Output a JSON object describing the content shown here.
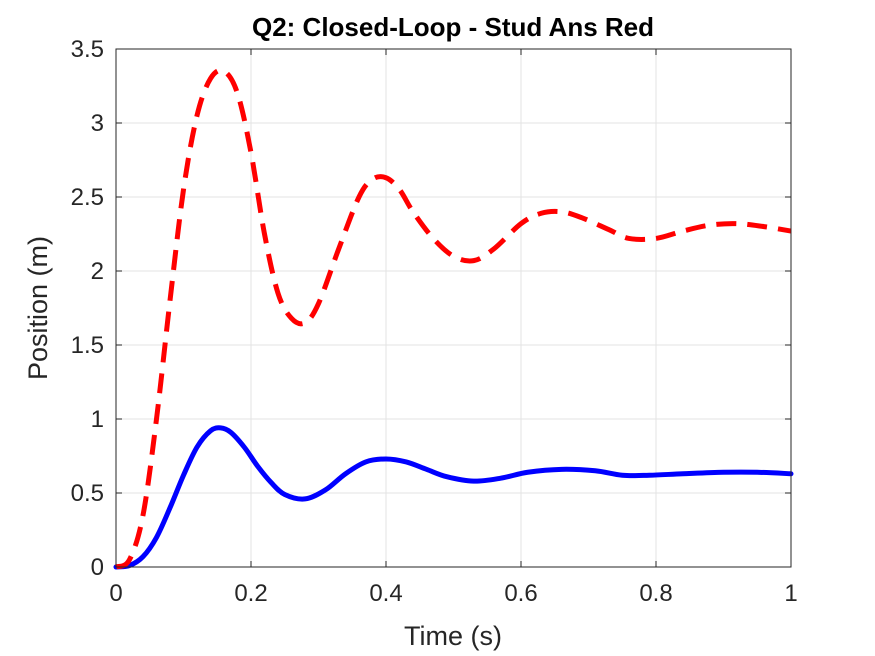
{
  "chart_data": {
    "type": "line",
    "title": "Q2: Closed-Loop - Stud Ans Red",
    "xlabel": "Time (s)",
    "ylabel": "Position (m)",
    "xlim": [
      0,
      1
    ],
    "ylim": [
      0,
      3.5
    ],
    "xticks": [
      0,
      0.2,
      0.4,
      0.6,
      0.8,
      1
    ],
    "xtick_labels": [
      "0",
      "0.2",
      "0.4",
      "0.6",
      "0.8",
      "1"
    ],
    "yticks": [
      0,
      0.5,
      1,
      1.5,
      2,
      2.5,
      3,
      3.5
    ],
    "ytick_labels": [
      "0",
      "0.5",
      "1",
      "1.5",
      "2",
      "2.5",
      "3",
      "3.5"
    ],
    "grid": true,
    "legend": "none",
    "series": [
      {
        "color": "#0000ff",
        "linestyle": "solid",
        "x": [
          0,
          0.02,
          0.04,
          0.06,
          0.08,
          0.1,
          0.12,
          0.14,
          0.155,
          0.17,
          0.19,
          0.21,
          0.23,
          0.25,
          0.28,
          0.31,
          0.34,
          0.37,
          0.4,
          0.43,
          0.46,
          0.49,
          0.53,
          0.57,
          0.61,
          0.66,
          0.71,
          0.75,
          0.79,
          0.84,
          0.9,
          0.95,
          1.0
        ],
        "y": [
          0,
          0.01,
          0.07,
          0.2,
          0.4,
          0.62,
          0.81,
          0.92,
          0.94,
          0.91,
          0.81,
          0.68,
          0.57,
          0.49,
          0.46,
          0.52,
          0.63,
          0.71,
          0.73,
          0.71,
          0.66,
          0.61,
          0.58,
          0.6,
          0.64,
          0.66,
          0.65,
          0.62,
          0.62,
          0.63,
          0.64,
          0.64,
          0.63
        ]
      },
      {
        "color": "#ff0000",
        "linestyle": "dashed",
        "x": [
          0,
          0.02,
          0.04,
          0.06,
          0.08,
          0.1,
          0.12,
          0.14,
          0.16,
          0.18,
          0.2,
          0.22,
          0.24,
          0.26,
          0.28,
          0.3,
          0.33,
          0.36,
          0.38,
          0.4,
          0.42,
          0.44,
          0.47,
          0.5,
          0.53,
          0.56,
          0.6,
          0.63,
          0.66,
          0.69,
          0.73,
          0.76,
          0.8,
          0.84,
          0.88,
          0.92,
          0.96,
          1.0
        ],
        "y": [
          0,
          0.05,
          0.35,
          1.0,
          1.8,
          2.55,
          3.05,
          3.3,
          3.35,
          3.2,
          2.8,
          2.25,
          1.85,
          1.68,
          1.65,
          1.78,
          2.15,
          2.5,
          2.62,
          2.63,
          2.55,
          2.4,
          2.22,
          2.1,
          2.07,
          2.15,
          2.32,
          2.39,
          2.4,
          2.36,
          2.28,
          2.22,
          2.22,
          2.27,
          2.31,
          2.32,
          2.3,
          2.27
        ]
      }
    ]
  }
}
